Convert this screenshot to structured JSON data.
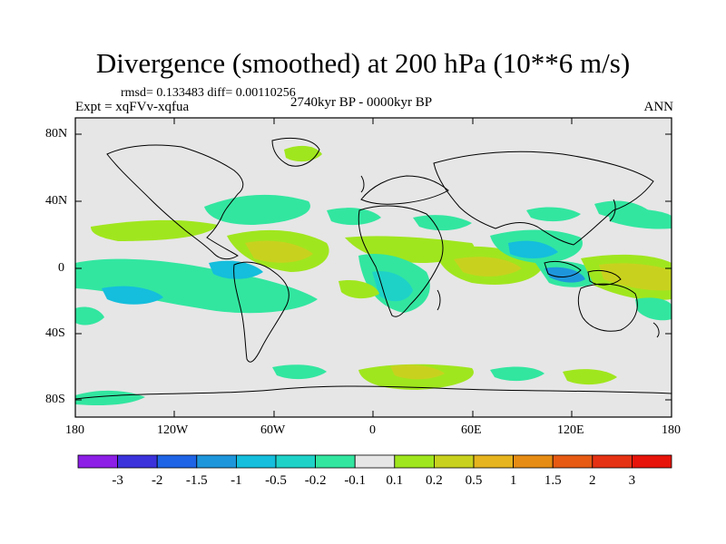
{
  "title": "Divergence (smoothed) at 200 hPa (10**6 m/s)",
  "stats": "rmsd= 0.133483 diff= 0.00110256",
  "experiment": "Expt = xqFVv-xqfua",
  "period": "2740kyr BP - 0000kyr BP",
  "season": "ANN",
  "lat_labels": [
    "80N",
    "40N",
    "0",
    "40S",
    "80S"
  ],
  "lon_labels": [
    "180",
    "120W",
    "60W",
    "0",
    "60E",
    "120E",
    "180"
  ],
  "colorbar": {
    "labels": [
      "-3",
      "-2",
      "-1.5",
      "-1",
      "-0.5",
      "-0.2",
      "-0.1",
      "0.1",
      "0.2",
      "0.5",
      "1",
      "1.5",
      "2",
      "3"
    ],
    "colors": [
      "#8c1ee6",
      "#3c32dc",
      "#1e64e6",
      "#1e96dc",
      "#14bedc",
      "#1ed2c8",
      "#32e6a0",
      "#e6e6e6",
      "#a0e61e",
      "#c8d21e",
      "#e6b41e",
      "#e68c14",
      "#e65a14",
      "#e63214",
      "#e6140a"
    ]
  },
  "colors": {
    "background": "#e6e6e6",
    "positive": "#c8c832",
    "negative": "#14b4dc"
  }
}
